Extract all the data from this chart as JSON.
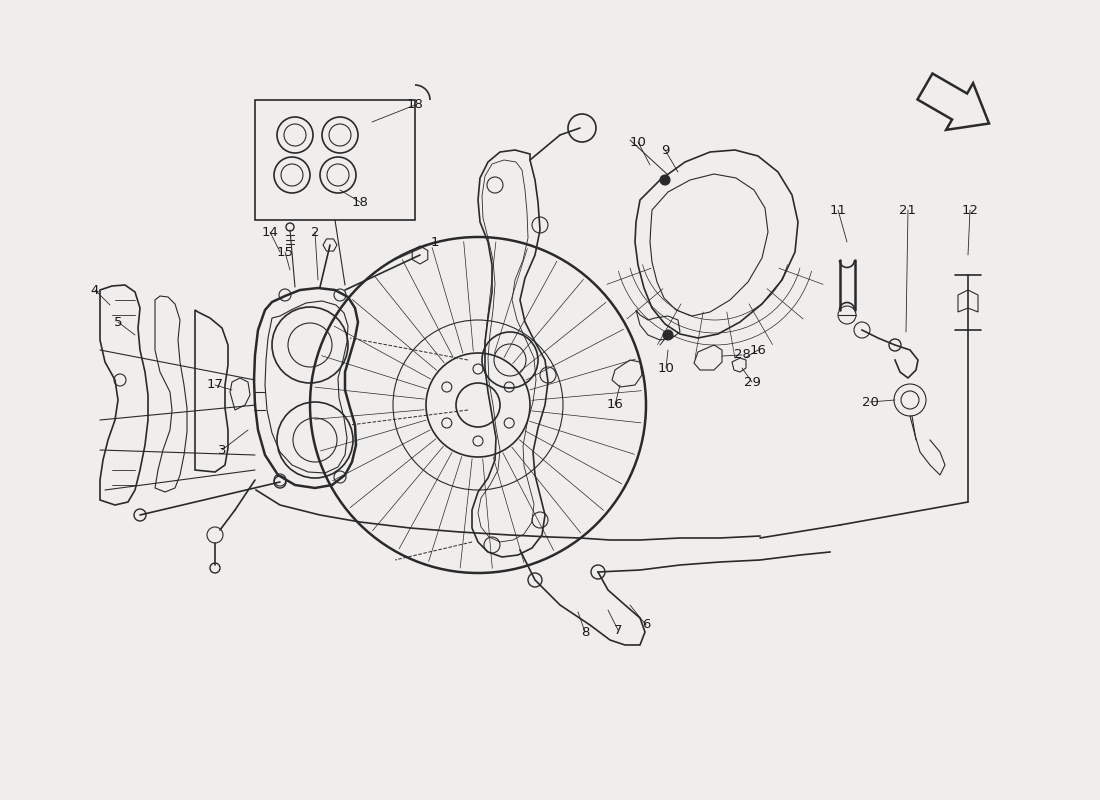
{
  "background_color": "#f0eeec",
  "line_color": "#2a2a2a",
  "label_color": "#1a1a1a",
  "fig_width": 11.0,
  "fig_height": 8.0,
  "dpi": 100
}
